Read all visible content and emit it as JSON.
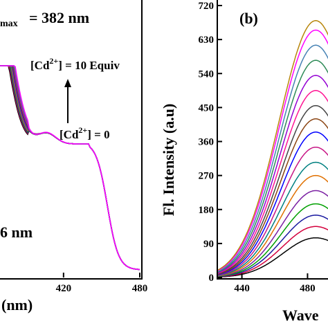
{
  "chart_data": [
    {
      "type": "line",
      "panel": "a",
      "title": "",
      "xlabel": "(nm)",
      "ylabel": "",
      "xlim": [
        370,
        480
      ],
      "x_ticks": [
        420,
        480
      ],
      "annotations": {
        "lambda_max": "= 382 nm",
        "lambda_sub": "max",
        "arrow_top": "[Cd2+] = 10 Equiv",
        "arrow_bottom": "[Cd2+] = 0",
        "ion_base": "[Cd",
        "ion_sup": "2+",
        "top_tail": "] = 10 Equiv",
        "bottom_tail": "] = 0",
        "secondary": "6 nm"
      },
      "series_colors": [
        "#000000",
        "#d4003c",
        "#1a1aa0",
        "#00a000",
        "#7a1fa2",
        "#e07000",
        "#008080",
        "#c71585",
        "#0000ff",
        "#8b4513",
        "#444444",
        "#ff1493",
        "#9400d3",
        "#2e8b57",
        "#4682b4",
        "#ff00ff"
      ],
      "series_count": 16,
      "shoulder_x": 412
    },
    {
      "type": "line",
      "panel": "b",
      "panel_label": "(b)",
      "title": "",
      "xlabel": "Wave",
      "ylabel": "Fl. Intensity (a.u)",
      "xlim": [
        425,
        495
      ],
      "ylim": [
        0,
        720
      ],
      "x_ticks": [
        440,
        480
      ],
      "y_ticks": [
        0,
        90,
        180,
        270,
        360,
        450,
        540,
        630,
        720
      ],
      "peak_x": 485,
      "series_colors": [
        "#000000",
        "#d4003c",
        "#1a1aa0",
        "#00a000",
        "#7a1fa2",
        "#e07000",
        "#008080",
        "#c71585",
        "#0000ff",
        "#8b4513",
        "#444444",
        "#ff1493",
        "#9400d3",
        "#2e8b57",
        "#4682b4",
        "#ff00ff",
        "#b8860b"
      ],
      "series": [
        {
          "name": "",
          "peak": 105
        },
        {
          "name": "",
          "peak": 135
        },
        {
          "name": "",
          "peak": 165
        },
        {
          "name": "",
          "peak": 195
        },
        {
          "name": "",
          "peak": 230
        },
        {
          "name": "",
          "peak": 270
        },
        {
          "name": "",
          "peak": 305
        },
        {
          "name": "",
          "peak": 345
        },
        {
          "name": "",
          "peak": 385
        },
        {
          "name": "",
          "peak": 420
        },
        {
          "name": "",
          "peak": 455
        },
        {
          "name": "",
          "peak": 495
        },
        {
          "name": "",
          "peak": 535
        },
        {
          "name": "",
          "peak": 575
        },
        {
          "name": "",
          "peak": 615
        },
        {
          "name": "",
          "peak": 655
        },
        {
          "name": "",
          "peak": 680
        }
      ]
    }
  ]
}
